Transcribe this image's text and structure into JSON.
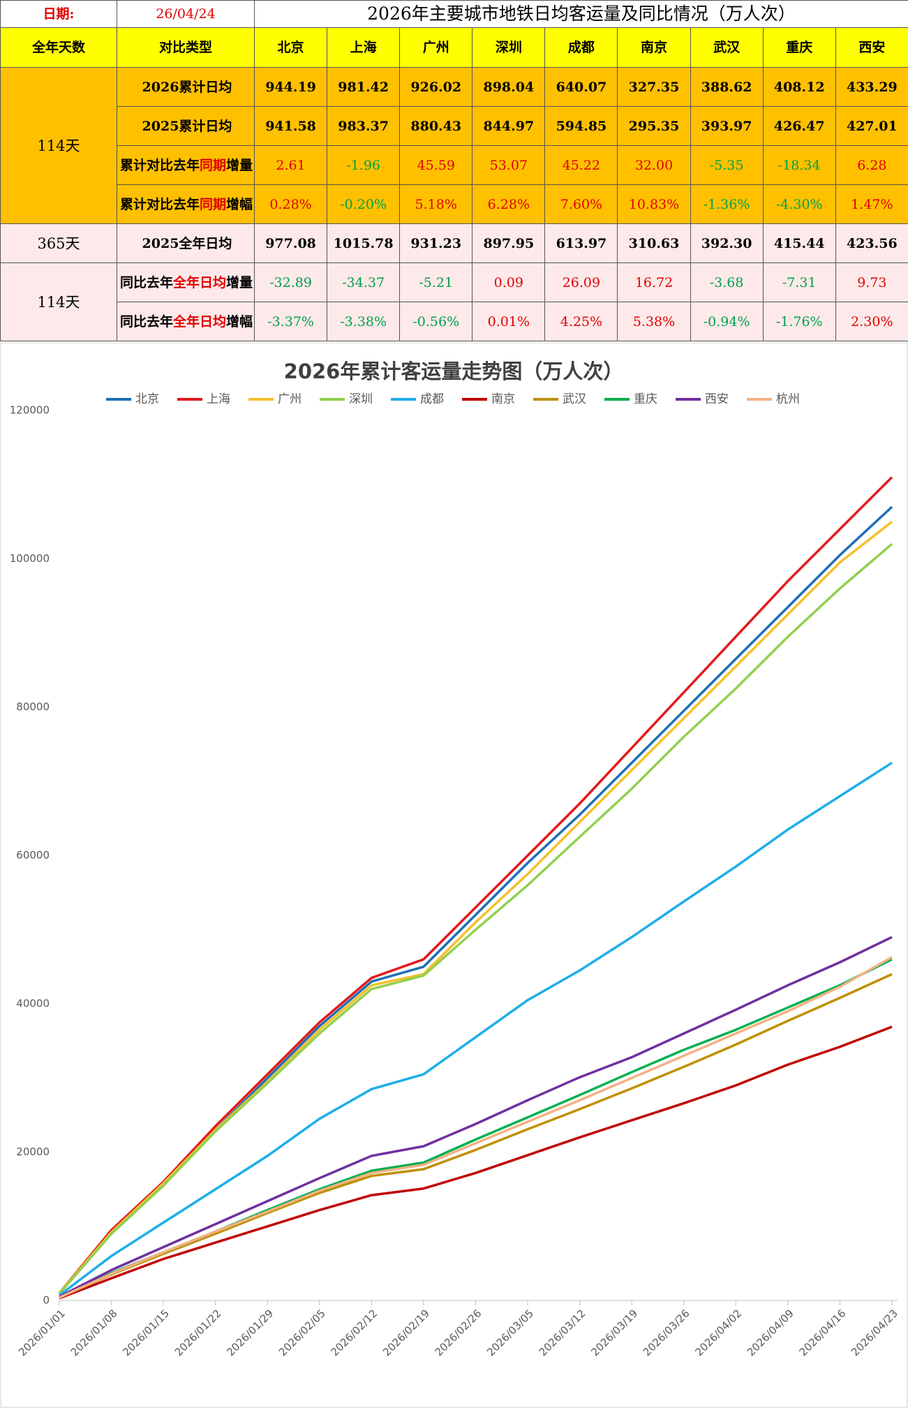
{
  "table": {
    "date_label": "日期:",
    "date": "26/04/24",
    "title": "2026年主要城市地铁日均客运量及同比情况（万人次）",
    "columns": [
      "全年天数",
      "对比类型",
      "北京",
      "上海",
      "广州",
      "深圳",
      "成都",
      "南京",
      "武汉",
      "重庆",
      "西安"
    ],
    "day_groups": [
      {
        "label": "114天"
      },
      {
        "label": "365天"
      },
      {
        "label": "114天"
      }
    ],
    "rows": [
      {
        "type_parts": [
          "2026累计日均"
        ],
        "values": [
          "944.19",
          "981.42",
          "926.02",
          "898.04",
          "640.07",
          "327.35",
          "388.62",
          "408.12",
          "433.29"
        ]
      },
      {
        "type_parts": [
          "2025累计日均"
        ],
        "values": [
          "941.58",
          "983.37",
          "880.43",
          "844.97",
          "594.85",
          "295.35",
          "393.97",
          "426.47",
          "427.01"
        ]
      },
      {
        "type_parts": [
          "累计对比去年",
          "同期",
          "增量"
        ],
        "values": [
          "2.61",
          "-1.96",
          "45.59",
          "53.07",
          "45.22",
          "32.00",
          "-5.35",
          "-18.34",
          "6.28"
        ]
      },
      {
        "type_parts": [
          "累计对比去年",
          "同期",
          "增幅"
        ],
        "values": [
          "0.28%",
          "-0.20%",
          "5.18%",
          "6.28%",
          "7.60%",
          "10.83%",
          "-1.36%",
          "-4.30%",
          "1.47%"
        ]
      },
      {
        "type_parts": [
          "2025全年日均"
        ],
        "values": [
          "977.08",
          "1015.78",
          "931.23",
          "897.95",
          "613.97",
          "310.63",
          "392.30",
          "415.44",
          "423.56"
        ]
      },
      {
        "type_parts": [
          "同比去年",
          "全年日均",
          "增量"
        ],
        "values": [
          "-32.89",
          "-34.37",
          "-5.21",
          "0.09",
          "26.09",
          "16.72",
          "-3.68",
          "-7.31",
          "9.73"
        ]
      },
      {
        "type_parts": [
          "同比去年",
          "全年日均",
          "增幅"
        ],
        "values": [
          "-3.37%",
          "-3.38%",
          "-0.56%",
          "0.01%",
          "4.25%",
          "5.38%",
          "-0.94%",
          "-1.76%",
          "2.30%"
        ]
      }
    ]
  },
  "chart_data": {
    "type": "line",
    "title": "2026年累计客运量走势图（万人次）",
    "categories": [
      "2026/01/01",
      "2026/01/08",
      "2026/01/15",
      "2026/01/22",
      "2026/01/29",
      "2026/02/05",
      "2026/02/12",
      "2026/02/19",
      "2026/02/26",
      "2026/03/05",
      "2026/03/12",
      "2026/03/19",
      "2026/03/26",
      "2026/04/02",
      "2026/04/09",
      "2026/04/16",
      "2026/04/23"
    ],
    "ylim": [
      0,
      120000
    ],
    "yticks": [
      0,
      20000,
      40000,
      60000,
      80000,
      100000,
      120000
    ],
    "legend": "top",
    "series": [
      {
        "name": "北京",
        "color": "#1f6fb5",
        "values": [
          1000,
          9000,
          15500,
          23000,
          30000,
          37000,
          43000,
          45000,
          52000,
          59000,
          65500,
          72500,
          79500,
          86500,
          93500,
          100500,
          107000
        ]
      },
      {
        "name": "上海",
        "color": "#e31a1c",
        "values": [
          1000,
          9500,
          16000,
          23500,
          30500,
          37500,
          43500,
          46000,
          53000,
          60000,
          67000,
          74500,
          82000,
          89500,
          97000,
          104000,
          111000
        ]
      },
      {
        "name": "广州",
        "color": "#f5c02b",
        "values": [
          1000,
          9200,
          15800,
          23000,
          29500,
          36500,
          42500,
          44000,
          51000,
          57500,
          64500,
          71500,
          78500,
          85500,
          92500,
          99500,
          105000
        ]
      },
      {
        "name": "深圳",
        "color": "#92d050",
        "values": [
          900,
          9000,
          15500,
          22800,
          29300,
          36000,
          42000,
          43800,
          50000,
          56000,
          62500,
          69000,
          76000,
          82500,
          89500,
          96000,
          102000
        ]
      },
      {
        "name": "成都",
        "color": "#1eaee8",
        "values": [
          700,
          6000,
          10500,
          15000,
          19500,
          24500,
          28500,
          30500,
          35500,
          40500,
          44500,
          49000,
          53800,
          58500,
          63500,
          68000,
          72500
        ]
      },
      {
        "name": "南京",
        "color": "#c00000",
        "values": [
          300,
          3000,
          5600,
          7800,
          10000,
          12200,
          14200,
          15100,
          17200,
          19600,
          22000,
          24300,
          26600,
          29000,
          31800,
          34200,
          36900
        ]
      },
      {
        "name": "武汉",
        "color": "#bf9000",
        "values": [
          400,
          3500,
          6300,
          9000,
          11800,
          14500,
          16800,
          17700,
          20300,
          23100,
          25800,
          28600,
          31500,
          34500,
          37700,
          40800,
          44000
        ]
      },
      {
        "name": "重庆",
        "color": "#00b050",
        "values": [
          400,
          3700,
          6500,
          9300,
          12200,
          15000,
          17500,
          18600,
          21700,
          24700,
          27700,
          30800,
          33800,
          36500,
          39500,
          42500,
          46000
        ]
      },
      {
        "name": "西安",
        "color": "#7030a0",
        "values": [
          500,
          4100,
          7200,
          10300,
          13400,
          16500,
          19500,
          20800,
          23800,
          27000,
          30100,
          32800,
          36000,
          39200,
          42500,
          45600,
          49000
        ]
      },
      {
        "name": "杭州",
        "color": "#f4b183",
        "values": [
          400,
          3600,
          6500,
          9300,
          12000,
          14800,
          17200,
          18300,
          21200,
          24100,
          27000,
          30000,
          33000,
          36000,
          39000,
          42300,
          46300
        ]
      }
    ]
  }
}
